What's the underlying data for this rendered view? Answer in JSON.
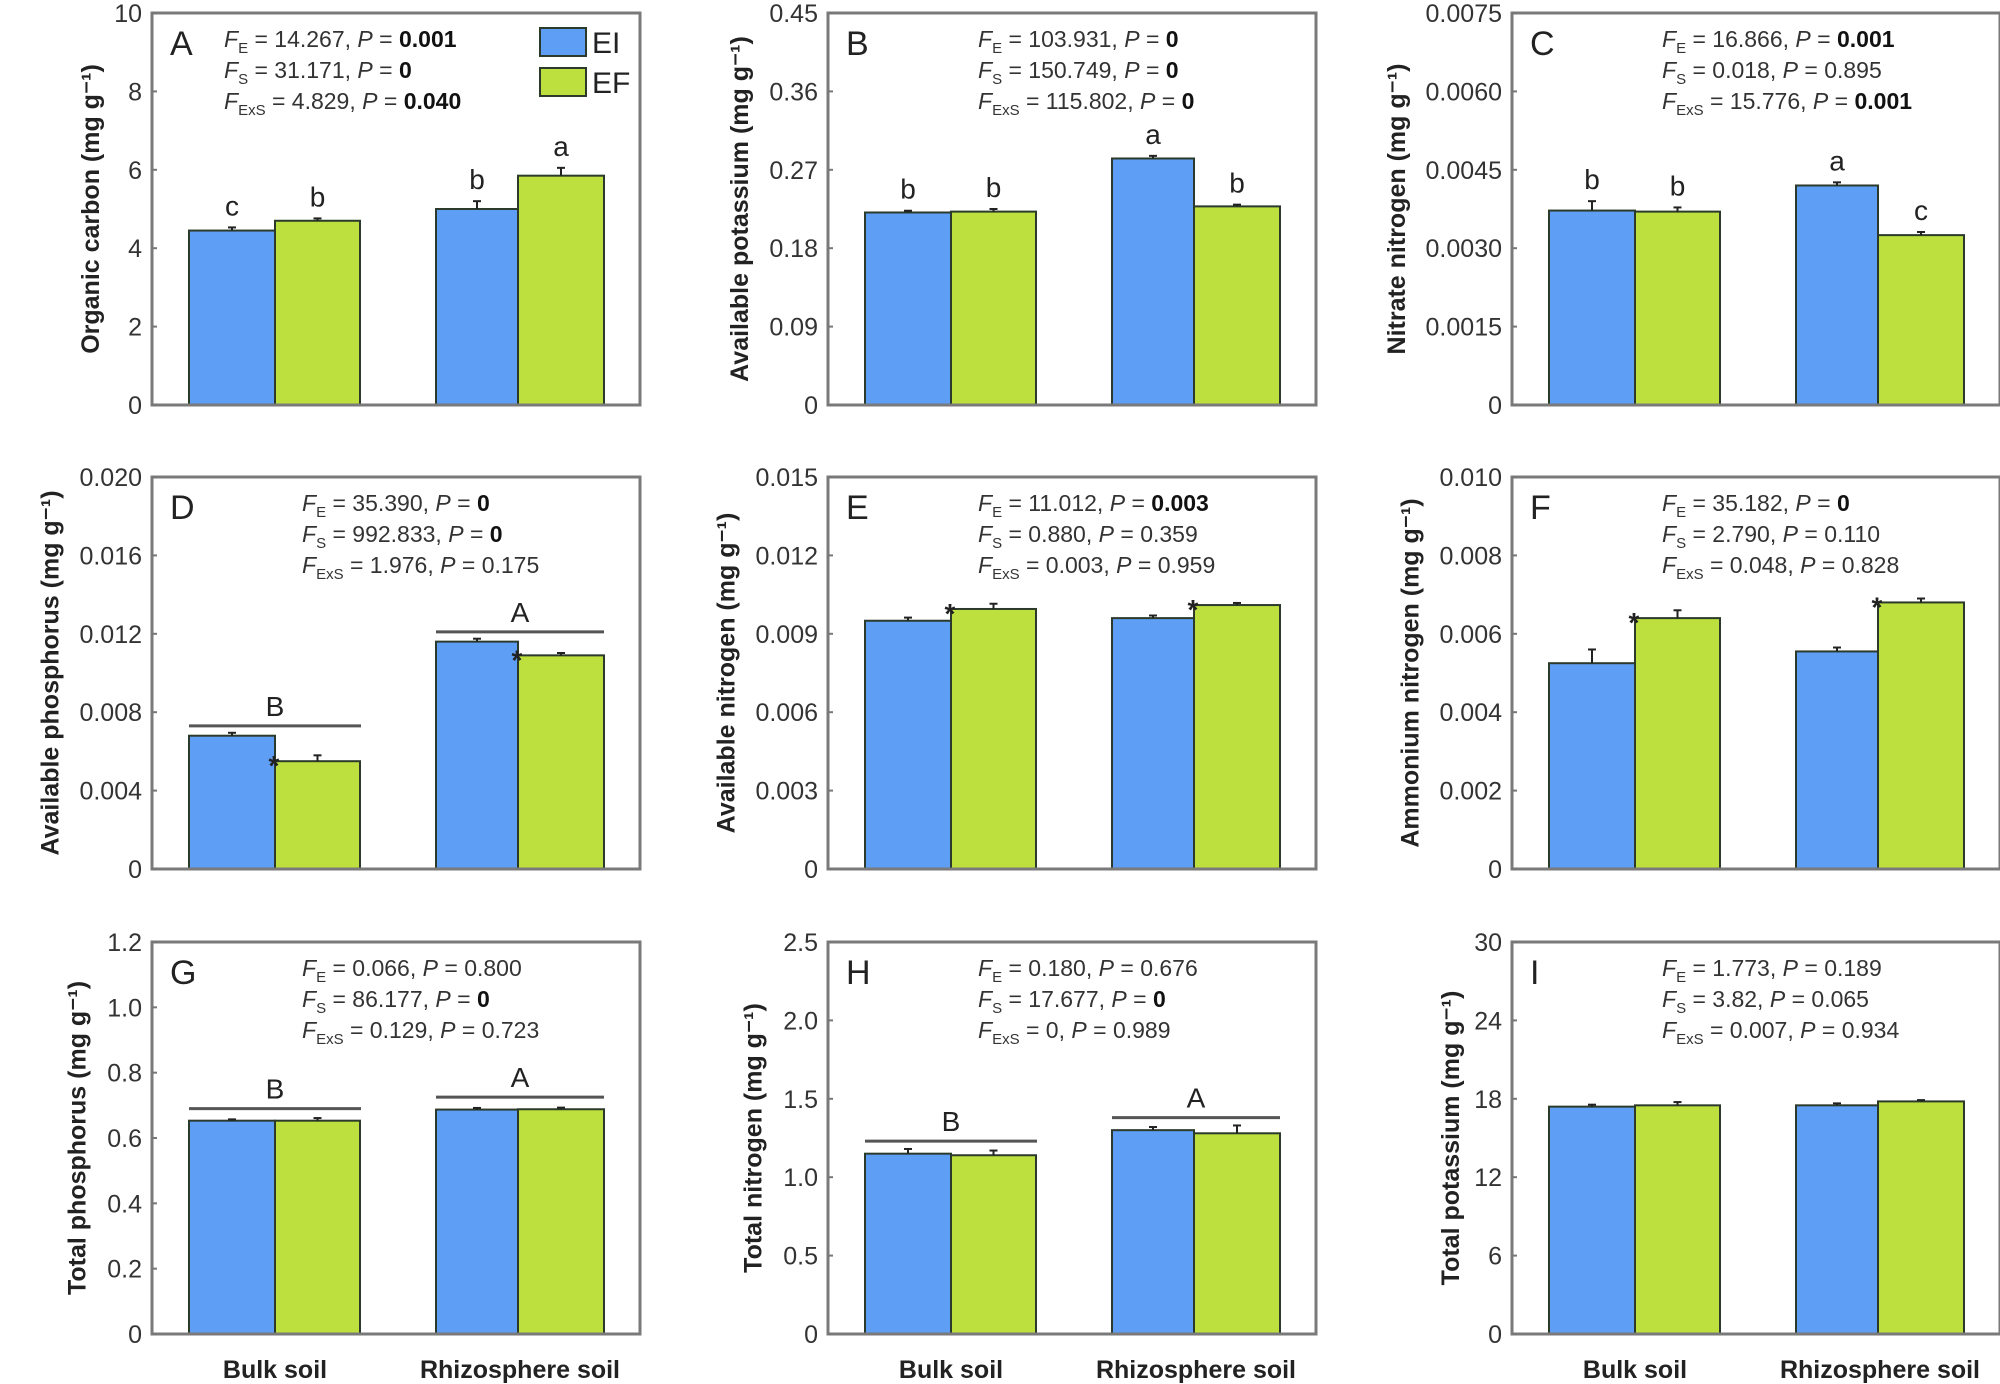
{
  "figure": {
    "legend": [
      {
        "label": "EI",
        "color": "#5f9ef5"
      },
      {
        "label": "EF",
        "color": "#bde03e"
      }
    ],
    "x_categories": [
      "Bulk soil",
      "Rhizosphere soil"
    ]
  },
  "chart_data": [
    {
      "type": "bar",
      "panel": "A",
      "ylabel": "Organic carbon (mg g⁻¹)",
      "ylim": [
        0,
        10
      ],
      "yticks": [
        "0",
        "2",
        "4",
        "6",
        "8",
        "10"
      ],
      "ytick_values": [
        0,
        2,
        4,
        6,
        8,
        10
      ],
      "categories": [
        "Bulk soil",
        "Rhizosphere soil"
      ],
      "series": [
        {
          "name": "EI",
          "values": [
            4.45,
            5.0
          ],
          "errors": [
            0.08,
            0.2
          ],
          "letters": [
            "c",
            "b"
          ],
          "stars": [
            false,
            false
          ]
        },
        {
          "name": "EF",
          "values": [
            4.7,
            5.85
          ],
          "errors": [
            0.06,
            0.2
          ],
          "letters": [
            "b",
            "a"
          ],
          "stars": [
            false,
            false
          ]
        }
      ],
      "group_letters": null,
      "stats": [
        {
          "sub": "E",
          "F": "14.267",
          "P": "0.001",
          "bold": true
        },
        {
          "sub": "S",
          "F": "31.171",
          "P": "0",
          "bold": true
        },
        {
          "sub": "ExS",
          "F": "4.829",
          "P": "0.040",
          "bold": true
        }
      ],
      "show_legend": true,
      "show_xlabels": false
    },
    {
      "type": "bar",
      "panel": "B",
      "ylabel": "Available potassium (mg g⁻¹)",
      "ylim": [
        0,
        0.45
      ],
      "yticks": [
        "0",
        "0.09",
        "0.18",
        "0.27",
        "0.36",
        "0.45"
      ],
      "ytick_values": [
        0,
        0.09,
        0.18,
        0.27,
        0.36,
        0.45
      ],
      "categories": [
        "Bulk soil",
        "Rhizosphere soil"
      ],
      "series": [
        {
          "name": "EI",
          "values": [
            0.221,
            0.283
          ],
          "errors": [
            0.002,
            0.003
          ],
          "letters": [
            "b",
            "a"
          ],
          "stars": [
            false,
            false
          ]
        },
        {
          "name": "EF",
          "values": [
            0.222,
            0.228
          ],
          "errors": [
            0.003,
            0.002
          ],
          "letters": [
            "b",
            "b"
          ],
          "stars": [
            false,
            false
          ]
        }
      ],
      "group_letters": null,
      "stats": [
        {
          "sub": "E",
          "F": "103.931",
          "P": "0",
          "bold": true
        },
        {
          "sub": "S",
          "F": "150.749",
          "P": "0",
          "bold": true
        },
        {
          "sub": "ExS",
          "F": "115.802",
          "P": "0",
          "bold": true
        }
      ],
      "show_legend": false,
      "show_xlabels": false
    },
    {
      "type": "bar",
      "panel": "C",
      "ylabel": "Nitrate nitrogen (mg g⁻¹)",
      "ylim": [
        0,
        0.0075
      ],
      "yticks": [
        "0",
        "0.0015",
        "0.0030",
        "0.0045",
        "0.0060",
        "0.0075"
      ],
      "ytick_values": [
        0,
        0.0015,
        0.003,
        0.0045,
        0.006,
        0.0075
      ],
      "categories": [
        "Bulk soil",
        "Rhizosphere soil"
      ],
      "series": [
        {
          "name": "EI",
          "values": [
            0.00372,
            0.0042
          ],
          "errors": [
            0.00018,
            6e-05
          ],
          "letters": [
            "b",
            "a"
          ],
          "stars": [
            false,
            false
          ]
        },
        {
          "name": "EF",
          "values": [
            0.0037,
            0.00325
          ],
          "errors": [
            8e-05,
            6e-05
          ],
          "letters": [
            "b",
            "c"
          ],
          "stars": [
            false,
            false
          ]
        }
      ],
      "group_letters": null,
      "stats": [
        {
          "sub": "E",
          "F": "16.866",
          "P": "0.001",
          "bold": true
        },
        {
          "sub": "S",
          "F": "0.018",
          "P": "0.895",
          "bold": false
        },
        {
          "sub": "ExS",
          "F": "15.776",
          "P": "0.001",
          "bold": true
        }
      ],
      "show_legend": false,
      "show_xlabels": false
    },
    {
      "type": "bar",
      "panel": "D",
      "ylabel": "Available phosphorus (mg g⁻¹)",
      "ylim": [
        0,
        0.02
      ],
      "yticks": [
        "0",
        "0.004",
        "0.008",
        "0.012",
        "0.016",
        "0.020"
      ],
      "ytick_values": [
        0,
        0.004,
        0.008,
        0.012,
        0.016,
        0.02
      ],
      "categories": [
        "Bulk soil",
        "Rhizosphere soil"
      ],
      "series": [
        {
          "name": "EI",
          "values": [
            0.0068,
            0.0116
          ],
          "errors": [
            0.00015,
            0.00015
          ],
          "letters": [
            "",
            ""
          ],
          "stars": [
            false,
            false
          ]
        },
        {
          "name": "EF",
          "values": [
            0.0055,
            0.0109
          ],
          "errors": [
            0.0003,
            0.00012
          ],
          "letters": [
            "",
            ""
          ],
          "stars": [
            true,
            true
          ]
        }
      ],
      "group_letters": [
        "B",
        "A"
      ],
      "group_line_values": [
        0.0073,
        0.0121
      ],
      "stats": [
        {
          "sub": "E",
          "F": "35.390",
          "P": "0",
          "bold": true
        },
        {
          "sub": "S",
          "F": "992.833",
          "P": "0",
          "bold": true
        },
        {
          "sub": "ExS",
          "F": "1.976",
          "P": "0.175",
          "bold": false
        }
      ],
      "show_legend": false,
      "show_xlabels": false
    },
    {
      "type": "bar",
      "panel": "E",
      "ylabel": "Available nitrogen (mg g⁻¹)",
      "ylim": [
        0,
        0.015
      ],
      "yticks": [
        "0",
        "0.003",
        "0.006",
        "0.009",
        "0.012",
        "0.015"
      ],
      "ytick_values": [
        0,
        0.003,
        0.006,
        0.009,
        0.012,
        0.015
      ],
      "categories": [
        "Bulk soil",
        "Rhizosphere soil"
      ],
      "series": [
        {
          "name": "EI",
          "values": [
            0.0095,
            0.0096
          ],
          "errors": [
            0.00012,
            0.0001
          ],
          "letters": [
            "",
            ""
          ],
          "stars": [
            false,
            false
          ]
        },
        {
          "name": "EF",
          "values": [
            0.00995,
            0.0101
          ],
          "errors": [
            0.0002,
            8e-05
          ],
          "letters": [
            "",
            ""
          ],
          "stars": [
            true,
            true
          ]
        }
      ],
      "group_letters": null,
      "stats": [
        {
          "sub": "E",
          "F": "11.012",
          "P": "0.003",
          "bold": true
        },
        {
          "sub": "S",
          "F": "0.880",
          "P": "0.359",
          "bold": false
        },
        {
          "sub": "ExS",
          "F": "0.003",
          "P": "0.959",
          "bold": false
        }
      ],
      "show_legend": false,
      "show_xlabels": false
    },
    {
      "type": "bar",
      "panel": "F",
      "ylabel": "Ammonium nitrogen (mg g⁻¹)",
      "ylim": [
        0,
        0.01
      ],
      "yticks": [
        "0",
        "0.002",
        "0.004",
        "0.006",
        "0.008",
        "0.010"
      ],
      "ytick_values": [
        0,
        0.002,
        0.004,
        0.006,
        0.008,
        0.01
      ],
      "categories": [
        "Bulk soil",
        "Rhizosphere soil"
      ],
      "series": [
        {
          "name": "EI",
          "values": [
            0.00525,
            0.00555
          ],
          "errors": [
            0.00035,
            0.0001
          ],
          "letters": [
            "",
            ""
          ],
          "stars": [
            false,
            false
          ]
        },
        {
          "name": "EF",
          "values": [
            0.0064,
            0.0068
          ],
          "errors": [
            0.0002,
            0.0001
          ],
          "letters": [
            "",
            ""
          ],
          "stars": [
            true,
            true
          ]
        }
      ],
      "group_letters": null,
      "stats": [
        {
          "sub": "E",
          "F": "35.182",
          "P": "0",
          "bold": true
        },
        {
          "sub": "S",
          "F": "2.790",
          "P": "0.110",
          "bold": false
        },
        {
          "sub": "ExS",
          "F": "0.048",
          "P": "0.828",
          "bold": false
        }
      ],
      "show_legend": false,
      "show_xlabels": false
    },
    {
      "type": "bar",
      "panel": "G",
      "ylabel": "Total phosphorus (mg g⁻¹)",
      "ylim": [
        0,
        1.2
      ],
      "yticks": [
        "0",
        "0.2",
        "0.4",
        "0.6",
        "0.8",
        "1.0",
        "1.2"
      ],
      "ytick_values": [
        0,
        0.2,
        0.4,
        0.6,
        0.8,
        1.0,
        1.2
      ],
      "categories": [
        "Bulk soil",
        "Rhizosphere soil"
      ],
      "series": [
        {
          "name": "EI",
          "values": [
            0.653,
            0.687
          ],
          "errors": [
            0.004,
            0.005
          ],
          "letters": [
            "",
            ""
          ],
          "stars": [
            false,
            false
          ]
        },
        {
          "name": "EF",
          "values": [
            0.653,
            0.688
          ],
          "errors": [
            0.008,
            0.005
          ],
          "letters": [
            "",
            ""
          ],
          "stars": [
            false,
            false
          ]
        }
      ],
      "group_letters": [
        "B",
        "A"
      ],
      "group_line_values": [
        0.69,
        0.725
      ],
      "stats": [
        {
          "sub": "E",
          "F": "0.066",
          "P": "0.800",
          "bold": false
        },
        {
          "sub": "S",
          "F": "86.177",
          "P": "0",
          "bold": true
        },
        {
          "sub": "ExS",
          "F": "0.129",
          "P": "0.723",
          "bold": false
        }
      ],
      "show_legend": false,
      "show_xlabels": true
    },
    {
      "type": "bar",
      "panel": "H",
      "ylabel": "Total nitrogen (mg g⁻¹)",
      "ylim": [
        0,
        2.5
      ],
      "yticks": [
        "0",
        "0.5",
        "1.0",
        "1.5",
        "2.0",
        "2.5"
      ],
      "ytick_values": [
        0,
        0.5,
        1.0,
        1.5,
        2.0,
        2.5
      ],
      "categories": [
        "Bulk soil",
        "Rhizosphere soil"
      ],
      "series": [
        {
          "name": "EI",
          "values": [
            1.15,
            1.3
          ],
          "errors": [
            0.03,
            0.02
          ],
          "letters": [
            "",
            ""
          ],
          "stars": [
            false,
            false
          ]
        },
        {
          "name": "EF",
          "values": [
            1.14,
            1.28
          ],
          "errors": [
            0.03,
            0.05
          ],
          "letters": [
            "",
            ""
          ],
          "stars": [
            false,
            false
          ]
        }
      ],
      "group_letters": [
        "B",
        "A"
      ],
      "group_line_values": [
        1.23,
        1.38
      ],
      "stats": [
        {
          "sub": "E",
          "F": "0.180",
          "P": "0.676",
          "bold": false
        },
        {
          "sub": "S",
          "F": "17.677",
          "P": "0",
          "bold": true
        },
        {
          "sub": "ExS",
          "F": "0",
          "P": "0.989",
          "bold": false
        }
      ],
      "show_legend": false,
      "show_xlabels": true
    },
    {
      "type": "bar",
      "panel": "I",
      "ylabel": "Total potassium (mg g⁻¹)",
      "ylim": [
        0,
        30
      ],
      "yticks": [
        "0",
        "6",
        "12",
        "18",
        "24",
        "30"
      ],
      "ytick_values": [
        0,
        6,
        12,
        18,
        24,
        30
      ],
      "categories": [
        "Bulk soil",
        "Rhizosphere soil"
      ],
      "series": [
        {
          "name": "EI",
          "values": [
            17.4,
            17.5
          ],
          "errors": [
            0.15,
            0.15
          ],
          "letters": [
            "",
            ""
          ],
          "stars": [
            false,
            false
          ]
        },
        {
          "name": "EF",
          "values": [
            17.5,
            17.8
          ],
          "errors": [
            0.25,
            0.1
          ],
          "letters": [
            "",
            ""
          ],
          "stars": [
            false,
            false
          ]
        }
      ],
      "group_letters": null,
      "stats": [
        {
          "sub": "E",
          "F": "1.773",
          "P": "0.189",
          "bold": false
        },
        {
          "sub": "S",
          "F": "3.82",
          "P": "0.065",
          "bold": false
        },
        {
          "sub": "ExS",
          "F": "0.007",
          "P": "0.934",
          "bold": false
        }
      ],
      "show_legend": false,
      "show_xlabels": true
    }
  ]
}
